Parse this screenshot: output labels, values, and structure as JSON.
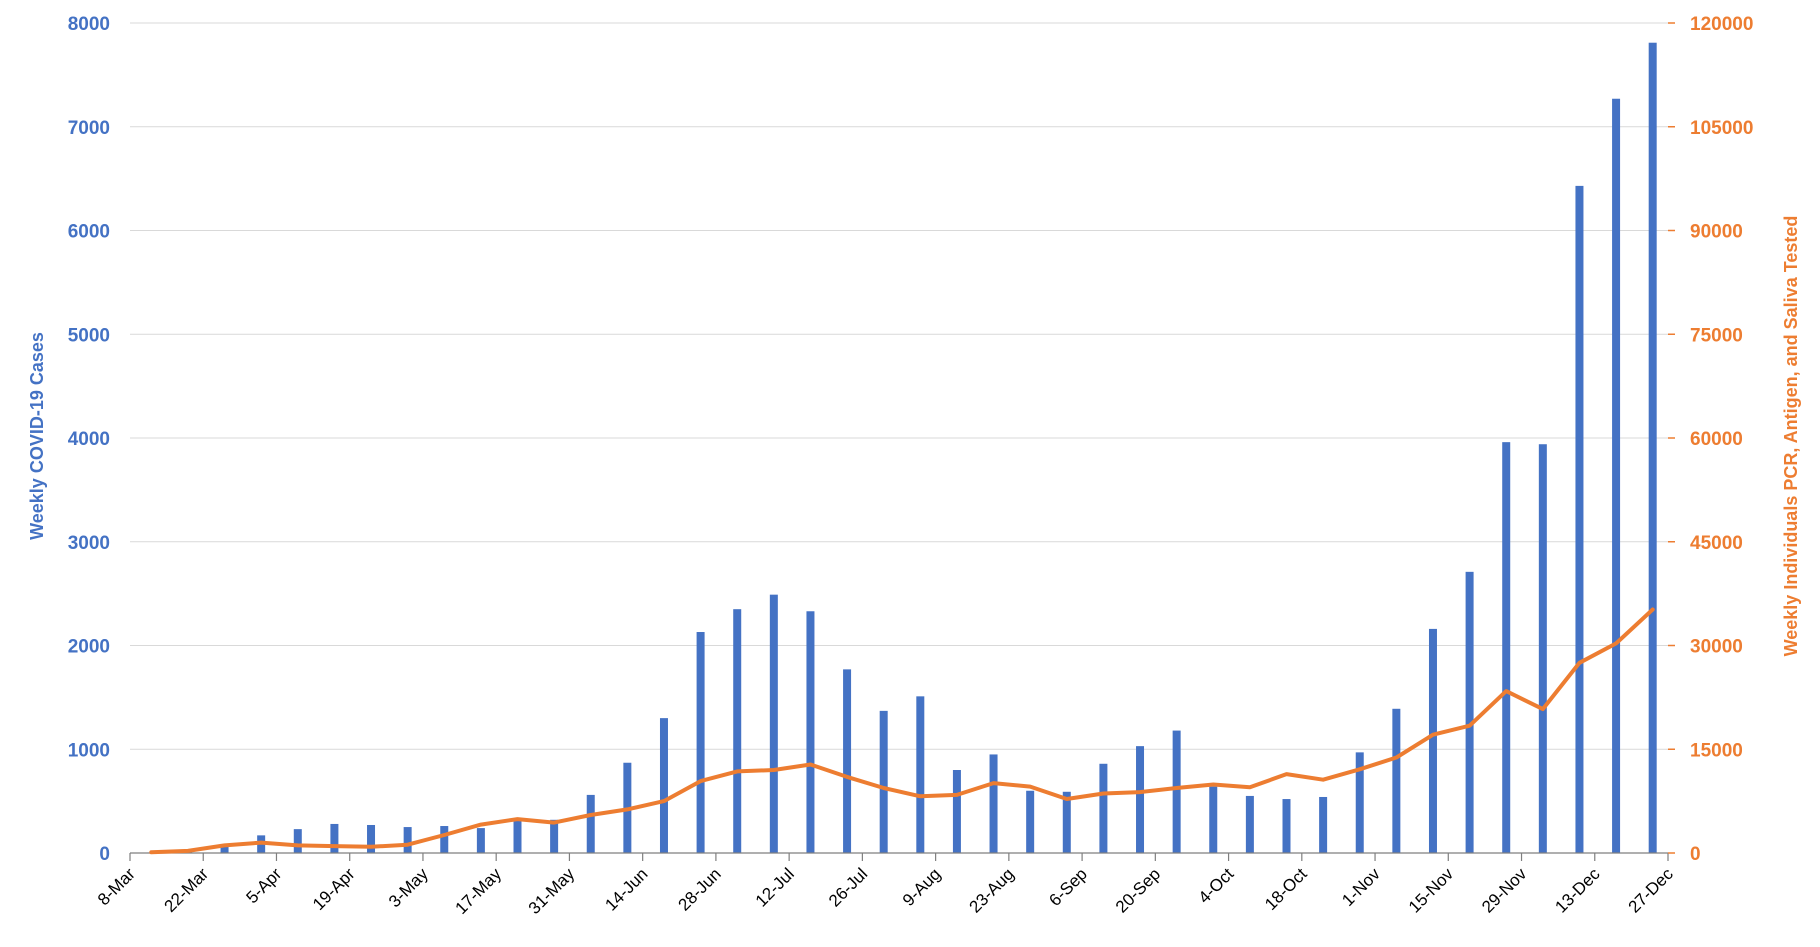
{
  "chart_data": {
    "type": "bar+line",
    "title": "",
    "xlabel": "",
    "ylabel_left": "Weekly COVID-19 Cases",
    "ylabel_right": "Weekly Individuals PCR, Antigen, and Saliva Tested",
    "ylim_left": [
      0,
      8000
    ],
    "ylim_right": [
      0,
      120000
    ],
    "yticks_left": [
      "0",
      "1000",
      "2000",
      "3000",
      "4000",
      "5000",
      "6000",
      "7000",
      "8000"
    ],
    "yticks_right": [
      "0",
      "15000",
      "30000",
      "45000",
      "60000",
      "75000",
      "90000",
      "105000",
      "120000"
    ],
    "x_tick_labels": [
      "8-Mar",
      "22-Mar",
      "5-Apr",
      "19-Apr",
      "3-May",
      "17-May",
      "31-May",
      "14-Jun",
      "28-Jun",
      "12-Jul",
      "26-Jul",
      "9-Aug",
      "23-Aug",
      "6-Sep",
      "20-Sep",
      "4-Oct",
      "18-Oct",
      "1-Nov",
      "15-Nov",
      "29-Nov",
      "13-Dec",
      "27-Dec"
    ],
    "grid": true,
    "legend": "none",
    "weeks": [
      "8-Mar",
      "15-Mar",
      "22-Mar",
      "29-Mar",
      "5-Apr",
      "12-Apr",
      "19-Apr",
      "26-Apr",
      "3-May",
      "10-May",
      "17-May",
      "24-May",
      "31-May",
      "7-Jun",
      "14-Jun",
      "21-Jun",
      "28-Jun",
      "5-Jul",
      "12-Jul",
      "19-Jul",
      "26-Jul",
      "2-Aug",
      "9-Aug",
      "16-Aug",
      "23-Aug",
      "30-Aug",
      "6-Sep",
      "13-Sep",
      "20-Sep",
      "27-Sep",
      "4-Oct",
      "11-Oct",
      "18-Oct",
      "25-Oct",
      "1-Nov",
      "8-Nov",
      "15-Nov",
      "22-Nov",
      "29-Nov",
      "6-Dec",
      "13-Dec",
      "20-Dec"
    ],
    "series": [
      {
        "name": "Weekly COVID-19 Cases",
        "kind": "bar",
        "axis": "left",
        "color": "#4472C4",
        "values": [
          5,
          20,
          60,
          170,
          230,
          280,
          270,
          250,
          260,
          240,
          330,
          320,
          560,
          870,
          1300,
          2130,
          2350,
          2490,
          2330,
          1770,
          1370,
          1510,
          800,
          950,
          600,
          590,
          860,
          1030,
          1180,
          640,
          550,
          520,
          540,
          970,
          1390,
          2160,
          2710,
          3960,
          3940,
          6430,
          7270,
          7810
        ]
      },
      {
        "name": "Weekly Individuals PCR, Antigen, and Saliva Tested",
        "kind": "line",
        "axis": "right",
        "color": "#ED7D31",
        "values": [
          100,
          300,
          1100,
          1500,
          1100,
          1000,
          900,
          1200,
          2600,
          4100,
          4900,
          4400,
          5500,
          6300,
          7500,
          10400,
          11800,
          12000,
          12800,
          11000,
          9400,
          8200,
          8400,
          10100,
          9600,
          7800,
          8600,
          8800,
          9400,
          9900,
          9500,
          11400,
          10600,
          12100,
          13800,
          17100,
          18400,
          23400,
          20800,
          27500,
          30300,
          35200
        ]
      }
    ]
  }
}
